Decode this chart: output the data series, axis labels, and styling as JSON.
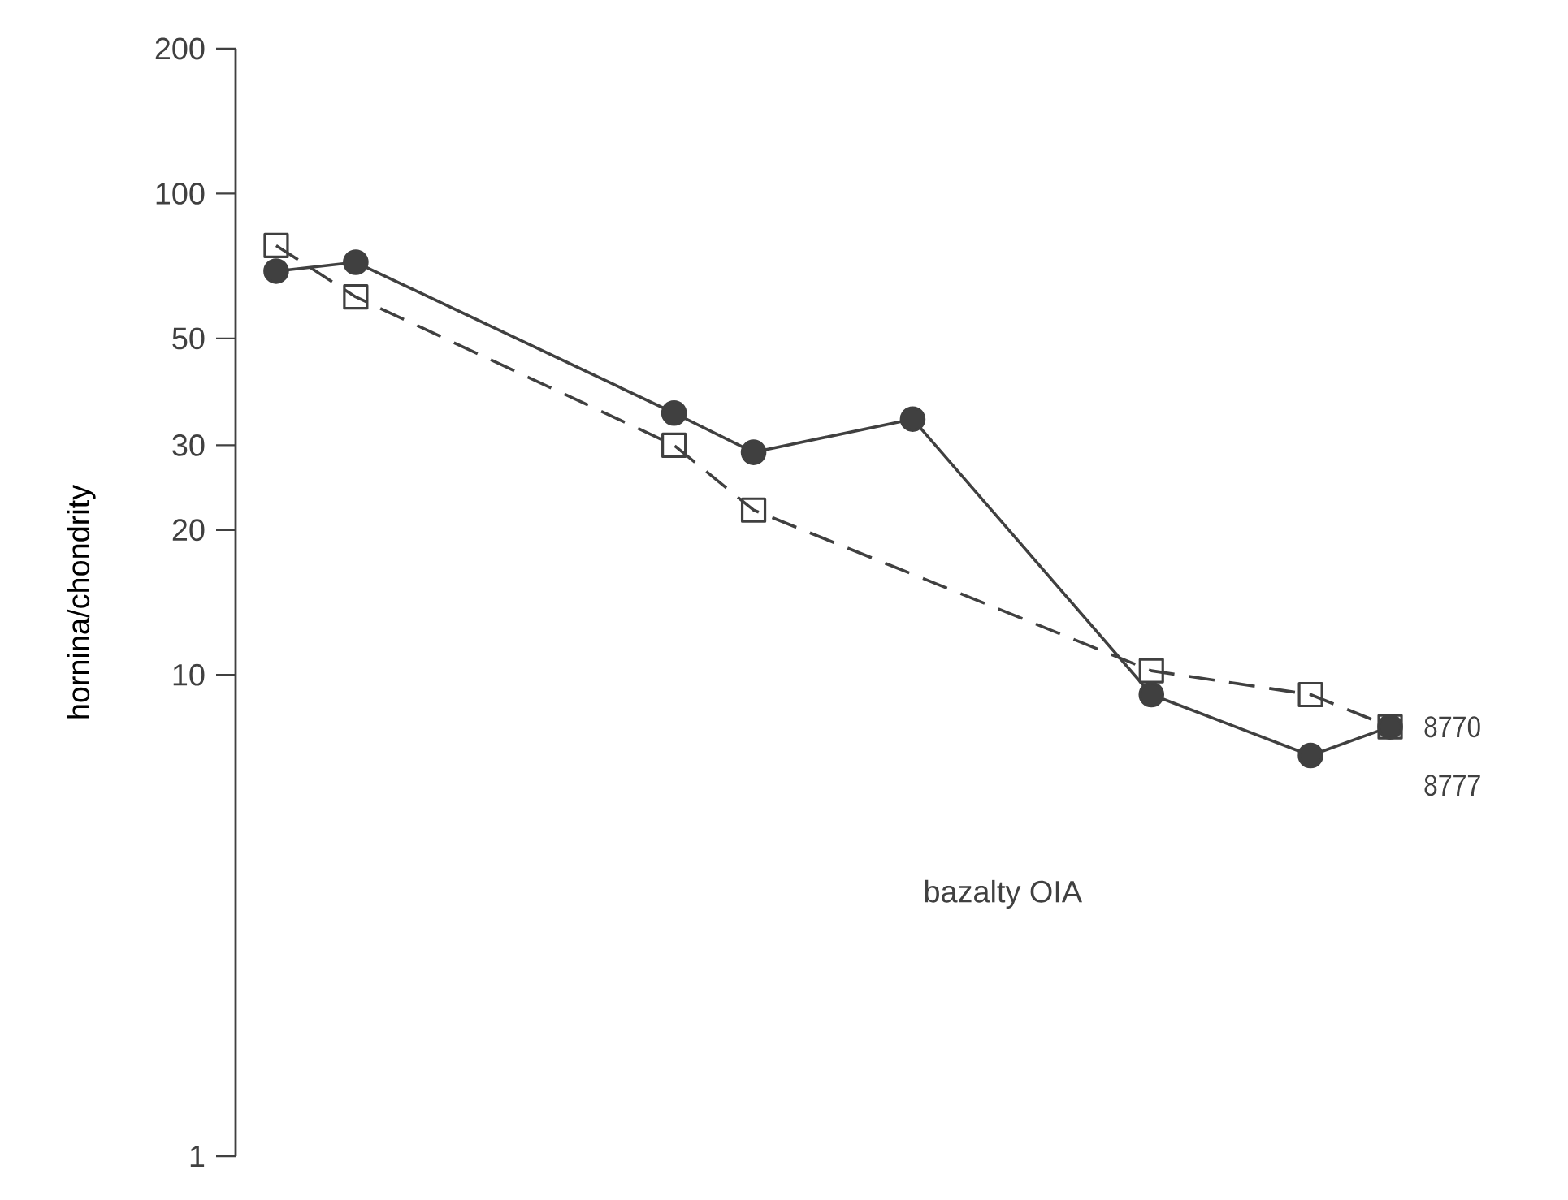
{
  "chart_data": {
    "type": "line",
    "ylabel": "hornina/chondrity",
    "categories": [
      null,
      null,
      null,
      null,
      null,
      null,
      null,
      null,
      null,
      null,
      null,
      null,
      null,
      null,
      null
    ],
    "series": [
      {
        "name": "8770",
        "color": "#404040",
        "marker": "square",
        "line_style": "dashed",
        "values": [
          78,
          61,
          null,
          null,
          null,
          30,
          22,
          null,
          null,
          null,
          null,
          10.2,
          null,
          9.1,
          7.8
        ]
      },
      {
        "name": "8777",
        "color": "#404040",
        "marker": "circle",
        "line_style": "solid",
        "values": [
          69,
          72,
          null,
          null,
          null,
          35,
          29,
          null,
          34,
          null,
          null,
          9.1,
          null,
          6.8,
          7.8
        ]
      }
    ],
    "log": "y",
    "ylim": [
      1,
      200
    ],
    "yticks": [
      1,
      10,
      20,
      30,
      50,
      100,
      200
    ],
    "grid": false,
    "legend": false,
    "annotations": [
      "bazalty OIA"
    ]
  }
}
